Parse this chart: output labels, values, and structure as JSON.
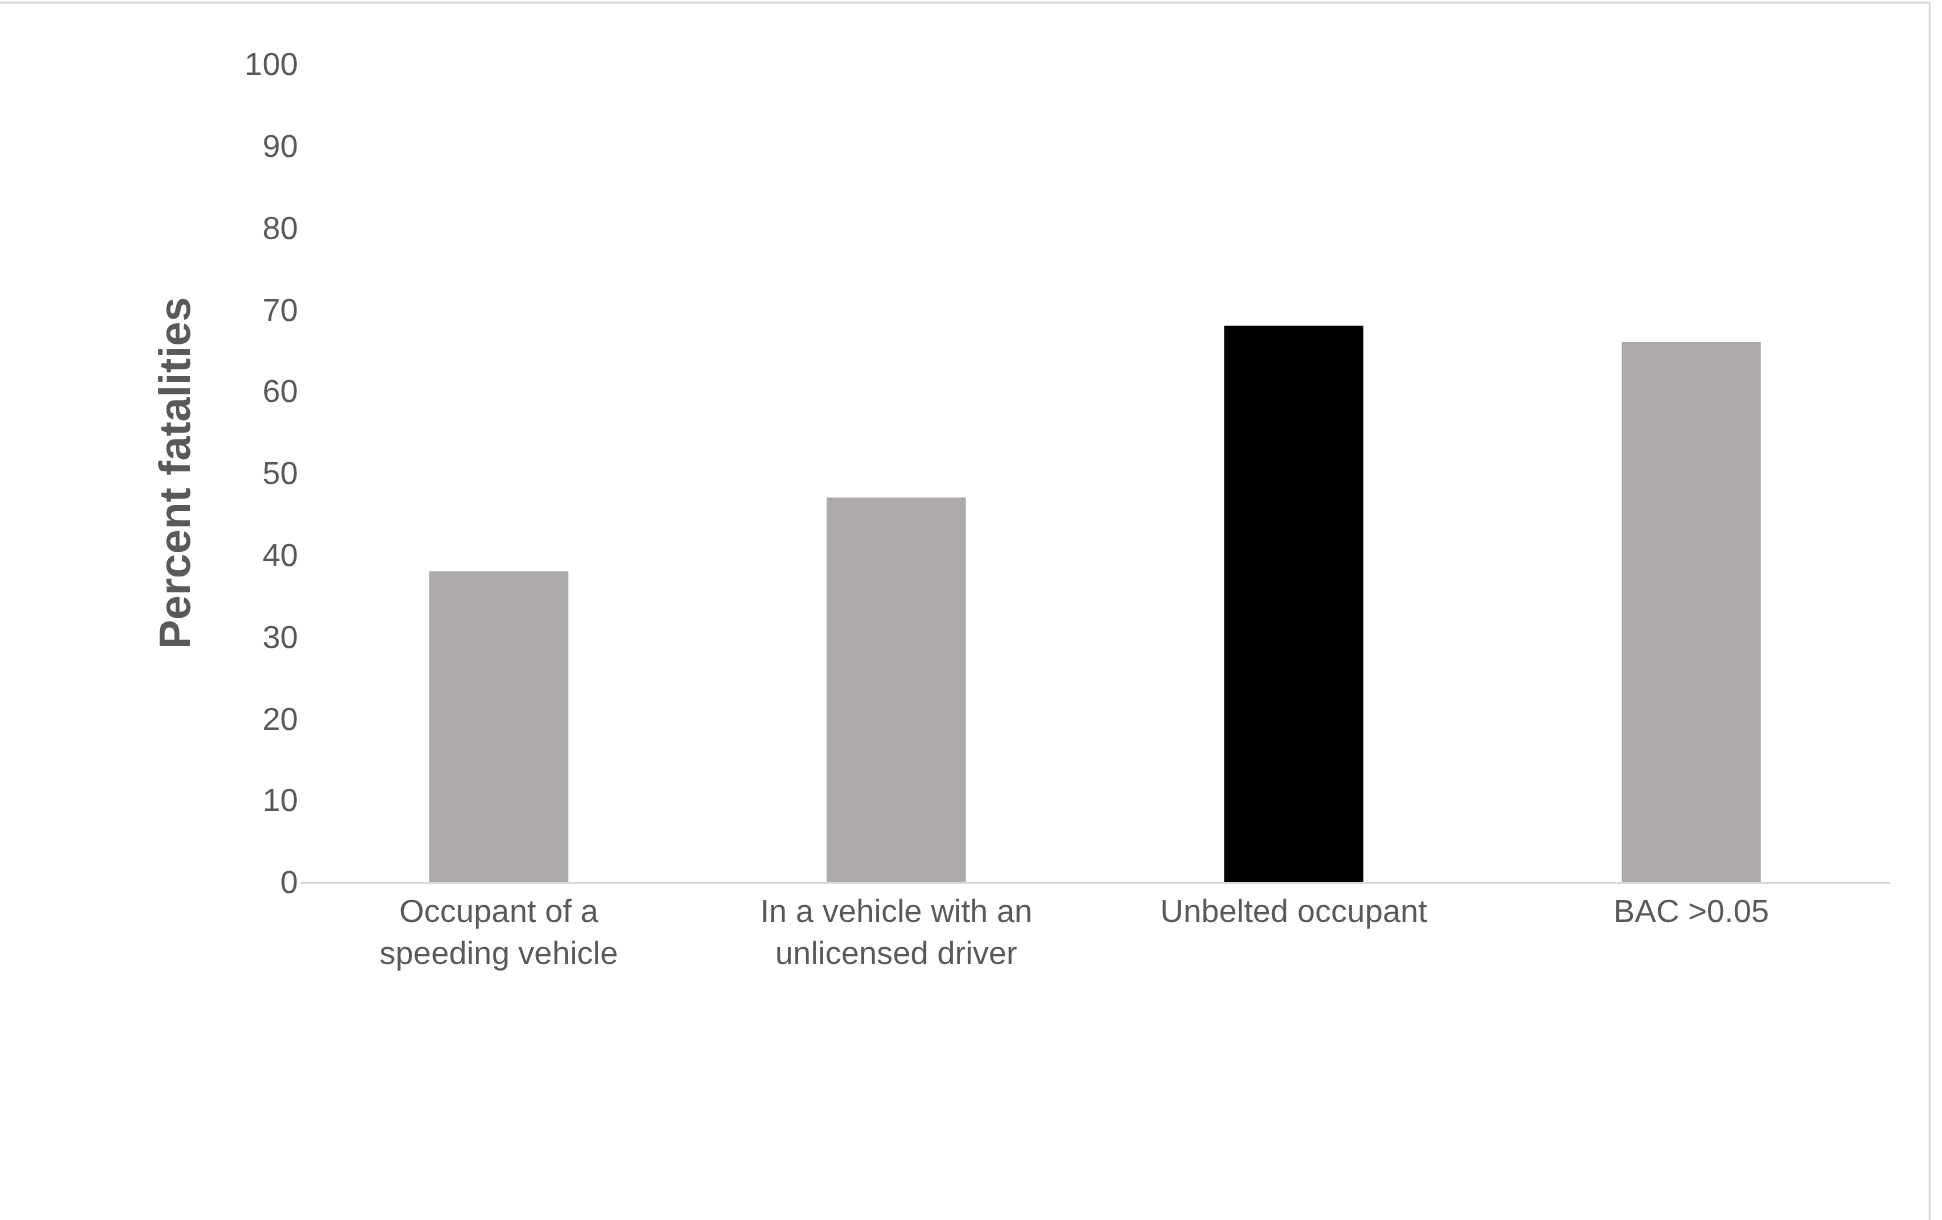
{
  "chart_data": {
    "type": "bar",
    "ylabel": "Percent fatalities",
    "categories": [
      "Occupant of a speeding vehicle",
      "In a vehicle with an unlicensed driver",
      "Unbelted occupant",
      "BAC >0.05"
    ],
    "values": [
      38,
      47,
      68,
      66
    ],
    "colors": [
      "#aeaaaa",
      "#aeaaaa",
      "#000000",
      "#aeaaaa"
    ],
    "ylim": [
      0,
      100
    ],
    "yticks": [
      0,
      10,
      20,
      30,
      40,
      50,
      60,
      70,
      80,
      90,
      100
    ],
    "grid": false
  }
}
